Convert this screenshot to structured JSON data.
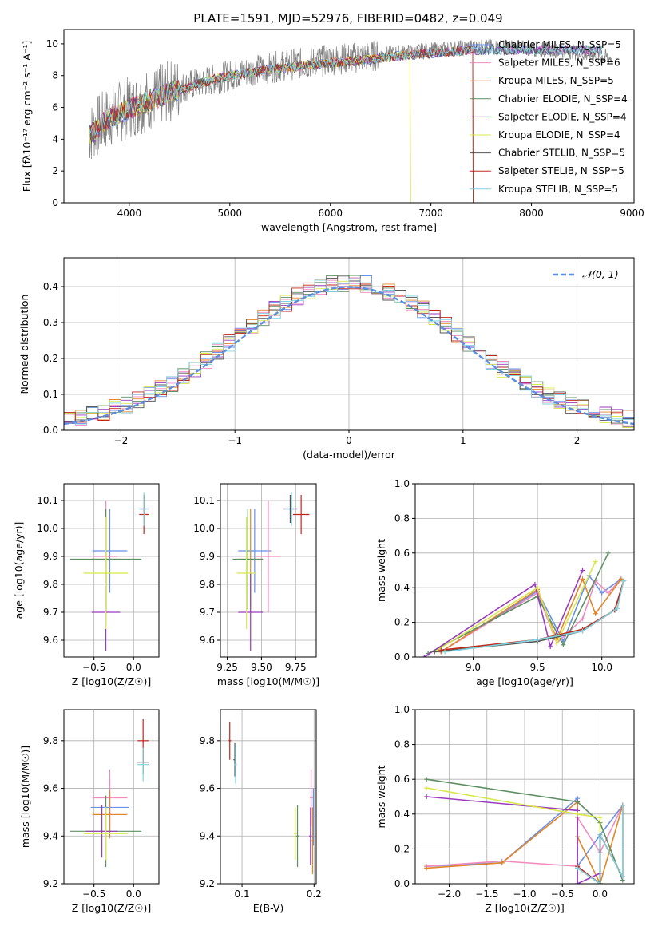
{
  "title": "PLATE=1591, MJD=52976, FIBERID=0482, z=0.049",
  "colors": [
    "#6a8fe6",
    "#f08bbf",
    "#e2862a",
    "#5e8f62",
    "#9a3bbd",
    "#d8e84e",
    "#555555",
    "#c0281e",
    "#7ed3de"
  ],
  "charts": [
    {
      "id": "spectrum",
      "type": "line",
      "xlabel": "wavelength [Angstrom, rest frame]",
      "ylabel": "Flux [fλ10⁻¹⁷ erg cm⁻² s⁻¹ A⁻¹]",
      "xlim": [
        3350,
        9020
      ],
      "ylim": [
        0,
        10.9
      ],
      "xticks": [
        4000,
        5000,
        6000,
        7000,
        8000,
        9000
      ],
      "yticks": [
        0,
        2,
        4,
        6,
        8,
        10
      ],
      "data_color": "#808080",
      "data_x": [
        3600,
        3700,
        3800,
        3900,
        4000,
        4200,
        4400,
        4600,
        4800,
        5000,
        5200,
        5400,
        5600,
        5800,
        6000,
        6200,
        6400,
        6600,
        6800,
        7000,
        7200,
        7400,
        7600,
        7800,
        8000,
        8200,
        8400,
        8600,
        8800
      ],
      "data_y": [
        4.3,
        4.9,
        5.4,
        5.7,
        6.0,
        6.5,
        7.0,
        7.4,
        7.7,
        8.0,
        8.3,
        8.5,
        8.7,
        8.8,
        9.0,
        9.1,
        9.2,
        9.4,
        9.5,
        9.6,
        9.7,
        9.8,
        9.8,
        9.8,
        9.7,
        9.6,
        9.5,
        9.3,
        9.1
      ],
      "model_x": [
        3600,
        3700,
        3800,
        3900,
        4000,
        4200,
        4400,
        4600,
        4800,
        5000,
        5200,
        5400,
        5600,
        5800,
        6000,
        6200,
        6400,
        6600,
        6800,
        7000,
        7200,
        7400
      ],
      "model_y": [
        4.2,
        4.8,
        5.3,
        5.6,
        5.9,
        6.4,
        6.9,
        7.3,
        7.7,
        8.0,
        8.2,
        8.4,
        8.5,
        8.7,
        8.8,
        8.9,
        9.0,
        9.2,
        9.3,
        9.4,
        9.5,
        9.6
      ],
      "legend": [
        "Chabrier MILES, N_SSP=5",
        "Salpeter MILES, N_SSP=6",
        "Kroupa MILES, N_SSP=5",
        "Chabrier ELODIE, N_SSP=4",
        "Salpeter ELODIE, N_SSP=4",
        "Kroupa ELODIE, N_SSP=4",
        "Chabrier STELIB, N_SSP=5",
        "Salpeter STELIB, N_SSP=5",
        "Kroupa STELIB, N_SSP=5"
      ]
    },
    {
      "id": "residuals",
      "type": "histogram",
      "xlabel": "(data-model)/error",
      "ylabel": "Normed distribution",
      "xlim": [
        -2.5,
        2.5
      ],
      "ylim": [
        0,
        0.48
      ],
      "xticks": [
        -2,
        -1,
        0,
        1,
        2
      ],
      "yticks": [
        0.0,
        0.1,
        0.2,
        0.3,
        0.4
      ],
      "curve_label": "𝒩(0, 1)",
      "bin_width": 0.1,
      "n_series": 9
    },
    {
      "id": "age_vs_Z",
      "type": "scatter",
      "xlabel": "Z [log10(Z/Z☉)]",
      "ylabel": "age  [log10(age/yr)]",
      "xlim": [
        -0.88,
        0.32
      ],
      "ylim": [
        9.54,
        10.16
      ],
      "xticks": [
        -0.5,
        0.0
      ],
      "yticks": [
        9.6,
        9.7,
        9.8,
        9.9,
        10.0,
        10.1
      ],
      "points": [
        {
          "x": -0.3,
          "y": 9.92,
          "xerr": 0.22,
          "yerr": 0.15
        },
        {
          "x": -0.35,
          "y": 9.9,
          "xerr": 0.15,
          "yerr": 0.2
        },
        {
          "x": -0.35,
          "y": 9.89,
          "xerr": 0.18,
          "yerr": 0.18
        },
        {
          "x": -0.35,
          "y": 9.89,
          "xerr": 0.45,
          "yerr": 0.18
        },
        {
          "x": -0.35,
          "y": 9.7,
          "xerr": 0.18,
          "yerr": 0.14
        },
        {
          "x": -0.35,
          "y": 9.84,
          "xerr": 0.28,
          "yerr": 0.2
        },
        {
          "x": 0.13,
          "y": 10.07,
          "xerr": 0.06,
          "yerr": 0.05
        },
        {
          "x": 0.13,
          "y": 10.05,
          "xerr": 0.06,
          "yerr": 0.07
        },
        {
          "x": 0.13,
          "y": 10.07,
          "xerr": 0.07,
          "yerr": 0.06
        }
      ]
    },
    {
      "id": "age_vs_mass",
      "type": "scatter",
      "xlabel": "mass [log10(M/M☉)]",
      "ylabel": "",
      "xlim": [
        9.2,
        9.9
      ],
      "ylim": [
        9.54,
        10.16
      ],
      "xticks": [
        9.25,
        9.5,
        9.75
      ],
      "yticks": [
        9.6,
        9.7,
        9.8,
        9.9,
        10.0,
        10.1
      ],
      "points": [
        {
          "x": 9.45,
          "y": 9.92,
          "xerr": 0.12,
          "yerr": 0.15
        },
        {
          "x": 9.55,
          "y": 9.9,
          "xerr": 0.09,
          "yerr": 0.2
        },
        {
          "x": 9.42,
          "y": 9.89,
          "xerr": 0.09,
          "yerr": 0.18
        },
        {
          "x": 9.4,
          "y": 9.89,
          "xerr": 0.11,
          "yerr": 0.18
        },
        {
          "x": 9.42,
          "y": 9.7,
          "xerr": 0.09,
          "yerr": 0.14
        },
        {
          "x": 9.39,
          "y": 9.84,
          "xerr": 0.07,
          "yerr": 0.2
        },
        {
          "x": 9.71,
          "y": 10.07,
          "xerr": 0.05,
          "yerr": 0.05
        },
        {
          "x": 9.79,
          "y": 10.05,
          "xerr": 0.06,
          "yerr": 0.07
        },
        {
          "x": 9.72,
          "y": 10.07,
          "xerr": 0.06,
          "yerr": 0.06
        }
      ]
    },
    {
      "id": "weight_vs_age",
      "type": "line",
      "xlabel": "age  [log10(age/yr)]",
      "ylabel": "mass weight",
      "xlim": [
        8.55,
        10.25
      ],
      "ylim": [
        0,
        1.0
      ],
      "xticks": [
        9.0,
        9.5,
        10.0
      ],
      "yticks": [
        0.0,
        0.2,
        0.4,
        0.6,
        0.8,
        1.0
      ],
      "series": [
        {
          "x": [
            8.75,
            9.5,
            9.7,
            9.9,
            10.0,
            10.15
          ],
          "y": [
            0.03,
            0.38,
            0.09,
            0.47,
            0.37,
            0.45
          ]
        },
        {
          "x": [
            8.75,
            9.5,
            9.65,
            9.85,
            9.95,
            10.05,
            10.15
          ],
          "y": [
            0.03,
            0.37,
            0.08,
            0.22,
            0.44,
            0.37,
            0.45
          ]
        },
        {
          "x": [
            8.75,
            9.5,
            9.65,
            9.85,
            9.95,
            10.15
          ],
          "y": [
            0.03,
            0.39,
            0.1,
            0.45,
            0.25,
            0.45
          ]
        },
        {
          "x": [
            8.65,
            9.5,
            9.7,
            10.05
          ],
          "y": [
            0.02,
            0.35,
            0.07,
            0.6
          ]
        },
        {
          "x": [
            8.62,
            9.48,
            9.6,
            9.85
          ],
          "y": [
            0.0,
            0.42,
            0.06,
            0.5
          ]
        },
        {
          "x": [
            8.7,
            9.5,
            9.65,
            9.95
          ],
          "y": [
            0.03,
            0.4,
            0.08,
            0.55
          ]
        },
        {
          "x": [
            8.7,
            9.5,
            9.85,
            10.1,
            10.17
          ],
          "y": [
            0.03,
            0.09,
            0.15,
            0.27,
            0.44
          ]
        },
        {
          "x": [
            8.75,
            9.5,
            9.85,
            10.1,
            10.17
          ],
          "y": [
            0.04,
            0.1,
            0.16,
            0.27,
            0.44
          ]
        },
        {
          "x": [
            8.78,
            9.5,
            9.85,
            10.12,
            10.17
          ],
          "y": [
            0.03,
            0.1,
            0.15,
            0.28,
            0.44
          ]
        }
      ]
    },
    {
      "id": "mass_vs_Z",
      "type": "scatter",
      "xlabel": "Z [log10(Z/Z☉)]",
      "ylabel": "mass [log10(M/M☉)]",
      "xlim": [
        -0.88,
        0.32
      ],
      "ylim": [
        9.2,
        9.93
      ],
      "xticks": [
        -0.5,
        0.0
      ],
      "yticks": [
        9.2,
        9.4,
        9.6,
        9.8
      ],
      "points": [
        {
          "x": -0.3,
          "y": 9.52,
          "xerr": 0.24,
          "yerr": 0.12
        },
        {
          "x": -0.3,
          "y": 9.56,
          "xerr": 0.22,
          "yerr": 0.12
        },
        {
          "x": -0.3,
          "y": 9.49,
          "xerr": 0.22,
          "yerr": 0.1
        },
        {
          "x": -0.35,
          "y": 9.42,
          "xerr": 0.45,
          "yerr": 0.15
        },
        {
          "x": -0.4,
          "y": 9.42,
          "xerr": 0.2,
          "yerr": 0.11
        },
        {
          "x": -0.35,
          "y": 9.41,
          "xerr": 0.28,
          "yerr": 0.11
        },
        {
          "x": 0.12,
          "y": 9.71,
          "xerr": 0.07,
          "yerr": 0.05
        },
        {
          "x": 0.12,
          "y": 9.8,
          "xerr": 0.07,
          "yerr": 0.09
        },
        {
          "x": 0.12,
          "y": 9.7,
          "xerr": 0.07,
          "yerr": 0.07
        }
      ]
    },
    {
      "id": "mass_vs_EBV",
      "type": "scatter",
      "xlabel": "E(B-V)",
      "ylabel": "",
      "xlim": [
        0.07,
        0.203
      ],
      "ylim": [
        9.2,
        9.93
      ],
      "xticks": [
        0.1,
        0.2
      ],
      "yticks": [
        9.2,
        9.4,
        9.6,
        9.8
      ],
      "points": [
        {
          "x": 0.199,
          "y": 9.48,
          "xerr": 0.002,
          "yerr": 0.12
        },
        {
          "x": 0.196,
          "y": 9.56,
          "xerr": 0.002,
          "yerr": 0.12
        },
        {
          "x": 0.198,
          "y": 9.38,
          "xerr": 0.002,
          "yerr": 0.14
        },
        {
          "x": 0.177,
          "y": 9.4,
          "xerr": 0.002,
          "yerr": 0.13
        },
        {
          "x": 0.195,
          "y": 9.4,
          "xerr": 0.002,
          "yerr": 0.12
        },
        {
          "x": 0.174,
          "y": 9.41,
          "xerr": 0.002,
          "yerr": 0.11
        },
        {
          "x": 0.09,
          "y": 9.72,
          "xerr": 0.002,
          "yerr": 0.07
        },
        {
          "x": 0.083,
          "y": 9.8,
          "xerr": 0.002,
          "yerr": 0.08
        },
        {
          "x": 0.091,
          "y": 9.7,
          "xerr": 0.002,
          "yerr": 0.08
        }
      ]
    },
    {
      "id": "weight_vs_Z",
      "type": "line",
      "xlabel": "Z [log10(Z/Z☉)]",
      "ylabel": "mass weight",
      "xlim": [
        -2.45,
        0.45
      ],
      "ylim": [
        0,
        1.0
      ],
      "xticks": [
        -2.0,
        -1.5,
        -1.0,
        -0.5,
        0.0
      ],
      "yticks": [
        0.0,
        0.2,
        0.4,
        0.6,
        0.8,
        1.0
      ],
      "series": [
        {
          "x": [
            -2.3,
            -1.3,
            -0.3,
            -0.3,
            0.0,
            0.3
          ],
          "y": [
            0.1,
            0.12,
            0.49,
            0.1,
            0.28,
            0.45
          ]
        },
        {
          "x": [
            -2.3,
            -1.3,
            -0.3,
            -0.3,
            0.0,
            0.3
          ],
          "y": [
            0.1,
            0.13,
            0.1,
            0.38,
            0.18,
            0.45
          ]
        },
        {
          "x": [
            -2.3,
            -1.3,
            -0.3,
            -0.3,
            0.0,
            0.3
          ],
          "y": [
            0.09,
            0.12,
            0.47,
            0.27,
            0.0,
            0.45
          ]
        },
        {
          "x": [
            -2.3,
            -0.3,
            0.0,
            0.3
          ],
          "y": [
            0.6,
            0.47,
            0.35,
            0.02
          ]
        },
        {
          "x": [
            -2.3,
            -0.3,
            -0.3,
            0.0
          ],
          "y": [
            0.5,
            0.42,
            0.0,
            0.06
          ]
        },
        {
          "x": [
            -2.3,
            -0.3,
            0.0,
            0.0
          ],
          "y": [
            0.55,
            0.4,
            0.38,
            0.0
          ]
        },
        {
          "x": [
            -0.3,
            0.0,
            0.0,
            0.3,
            0.3
          ],
          "y": [
            0.09,
            0.0,
            0.28,
            0.04,
            0.45
          ]
        },
        {
          "x": [
            -0.3,
            0.0,
            0.0,
            0.3,
            0.3
          ],
          "y": [
            0.1,
            0.0,
            0.28,
            0.04,
            0.45
          ]
        },
        {
          "x": [
            -0.3,
            0.0,
            0.0,
            0.3,
            0.3
          ],
          "y": [
            0.09,
            0.0,
            0.28,
            0.04,
            0.45
          ]
        }
      ]
    }
  ]
}
